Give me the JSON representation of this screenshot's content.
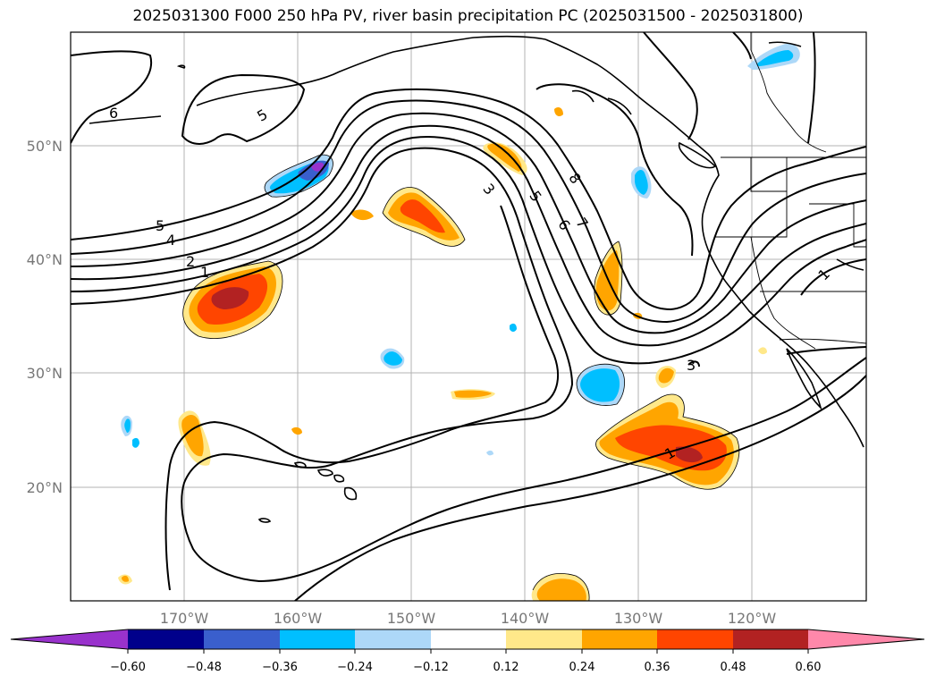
{
  "title": "2025031300 F000 250 hPa PV, river basin precipitation PC (2025031500 - 2025031800)",
  "lat_labels": [
    "50°N",
    "40°N",
    "30°N",
    "20°N"
  ],
  "lon_labels": [
    "170°W",
    "160°W",
    "150°W",
    "140°W",
    "130°W",
    "120°W"
  ],
  "colorbar": {
    "ticks": [
      "−0.60",
      "−0.48",
      "−0.36",
      "−0.24",
      "−0.12",
      "0.12",
      "0.24",
      "0.36",
      "0.48",
      "0.60"
    ],
    "colors": [
      "#9932cc",
      "#00008b",
      "#3a5fcd",
      "#00bfff",
      "#add8f8",
      "#ffffff",
      "#ffe88a",
      "#ffa500",
      "#ff4500",
      "#b22222",
      "#ff88aa"
    ]
  },
  "contour_labels": [
    "6",
    "5",
    "5",
    "4",
    "2",
    "1",
    "3",
    "5",
    "6",
    "7",
    "8",
    "1",
    "3",
    "1"
  ],
  "colors": {
    "positive_light": "#ffe88a",
    "positive_mid": "#ffa500",
    "positive_strong": "#ff4500",
    "positive_max": "#b22222",
    "negative_light": "#add8f8",
    "negative_mid": "#00bfff",
    "negative_strong": "#3a5fcd"
  }
}
